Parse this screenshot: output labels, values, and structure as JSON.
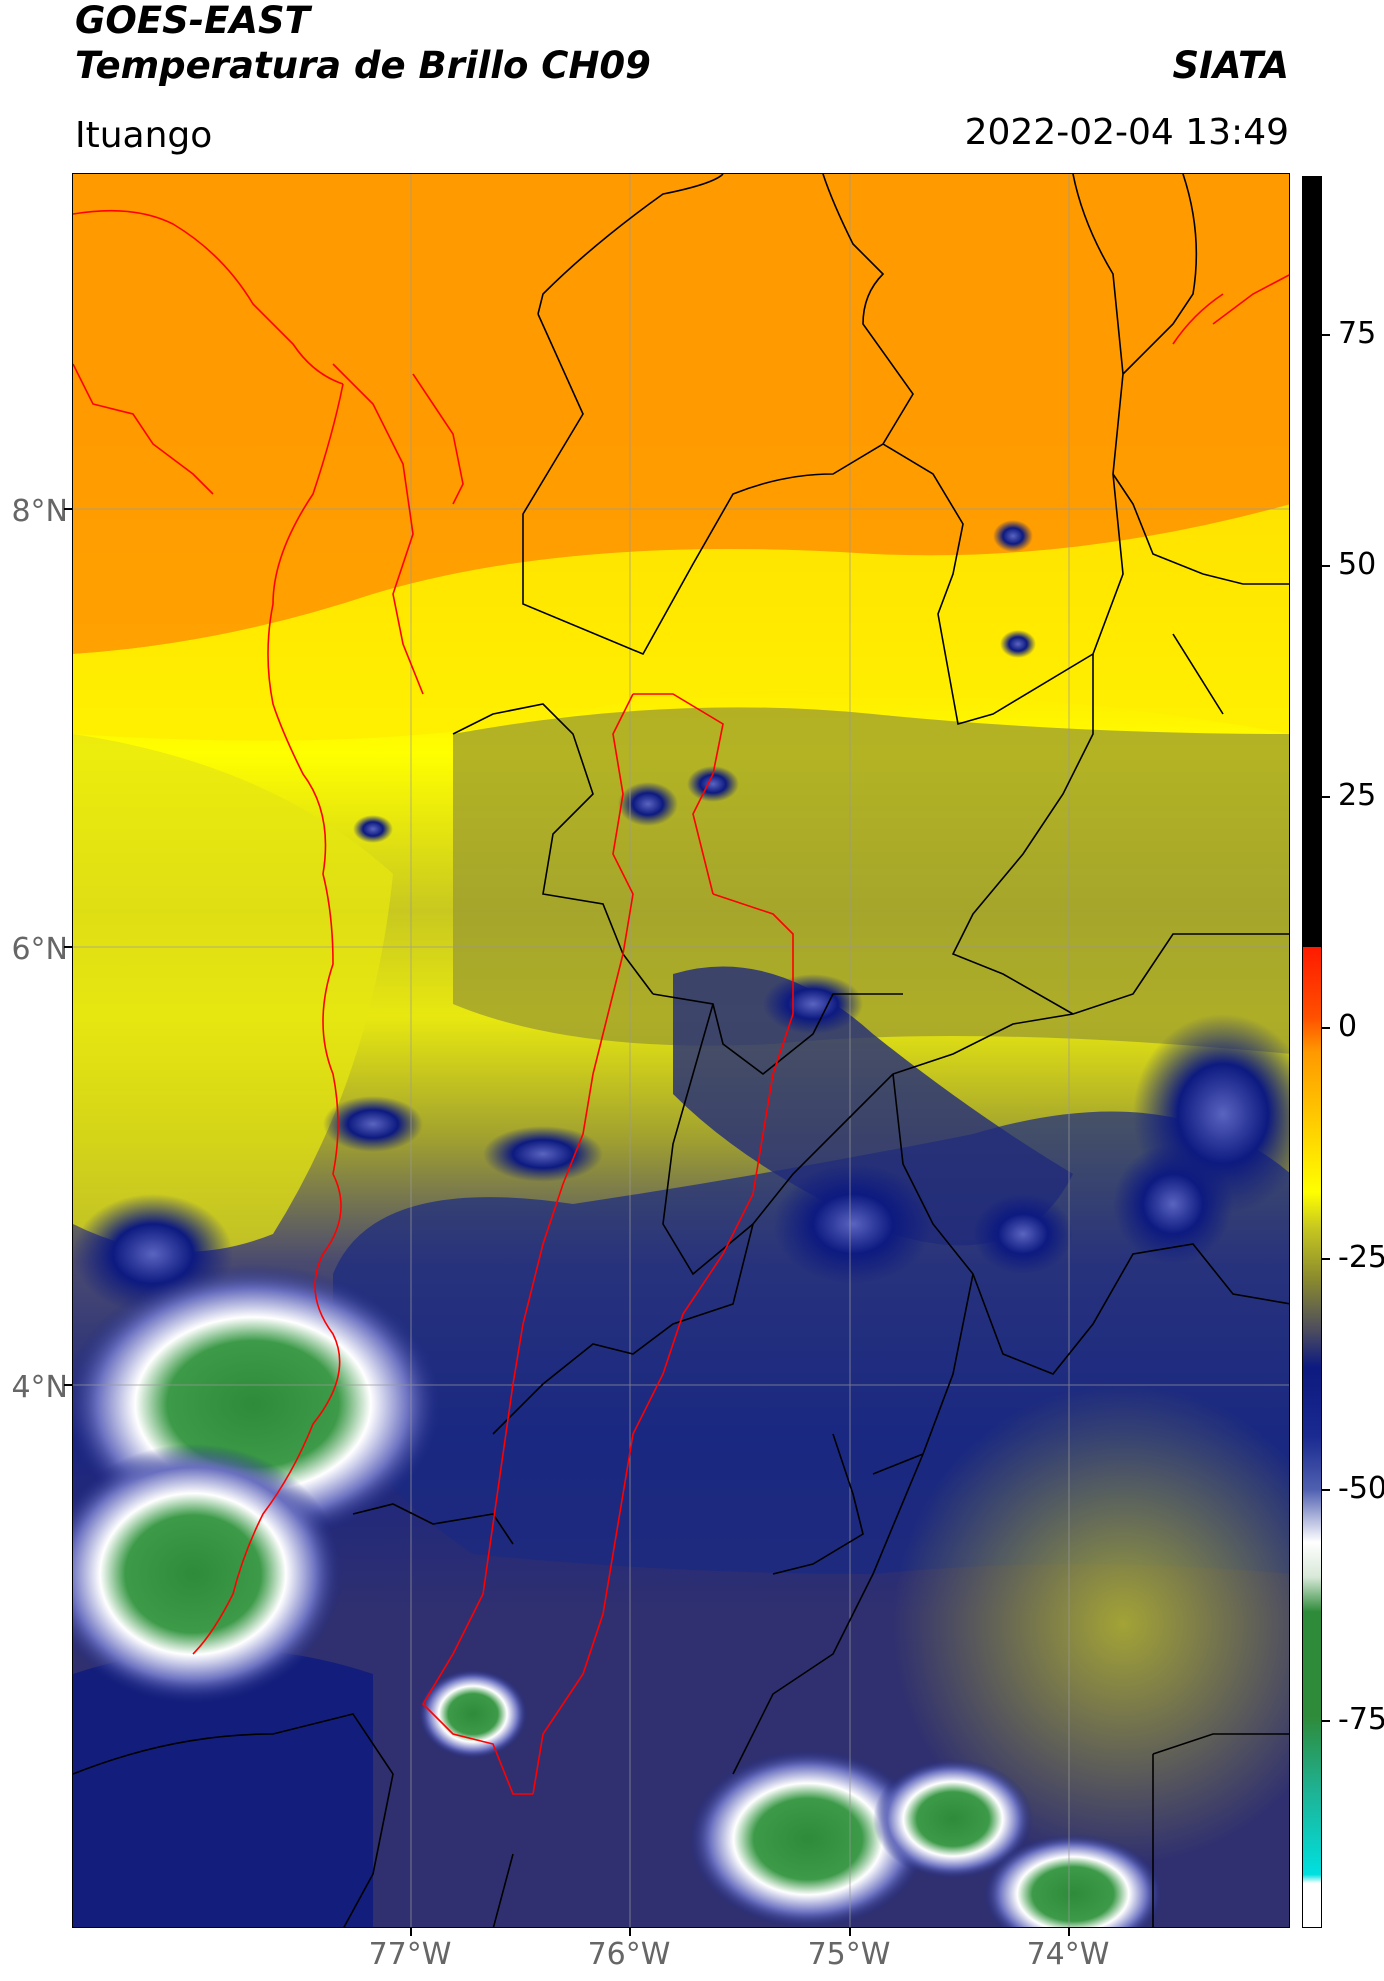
{
  "header": {
    "title_line1": "GOES-EAST",
    "title_line2": "Temperatura de Brillo CH09",
    "brand": "SIATA",
    "region": "Ituango",
    "datetime": "2022-02-04 13:49"
  },
  "axes": {
    "lat_labels": [
      "8°N",
      "6°N",
      "4°N"
    ],
    "lon_labels": [
      "77°W",
      "76°W",
      "75°W",
      "74°W"
    ]
  },
  "colorbar": {
    "labels": [
      "75",
      "50",
      "25",
      "0",
      "-25",
      "-50",
      "-75"
    ],
    "colors": {
      "black": "#000000",
      "red": "#ff1a00",
      "orange": "#ff9900",
      "yellow": "#ffff00",
      "olive": "#8a8a2e",
      "navy": "#0d1a80",
      "white": "#ffffff",
      "green": "#2e8b3a",
      "cyan": "#00e0e0"
    }
  },
  "map": {
    "lines": {
      "admin_color": "#000000",
      "basin_color": "#ff0000",
      "grid_color": "#999999"
    }
  }
}
